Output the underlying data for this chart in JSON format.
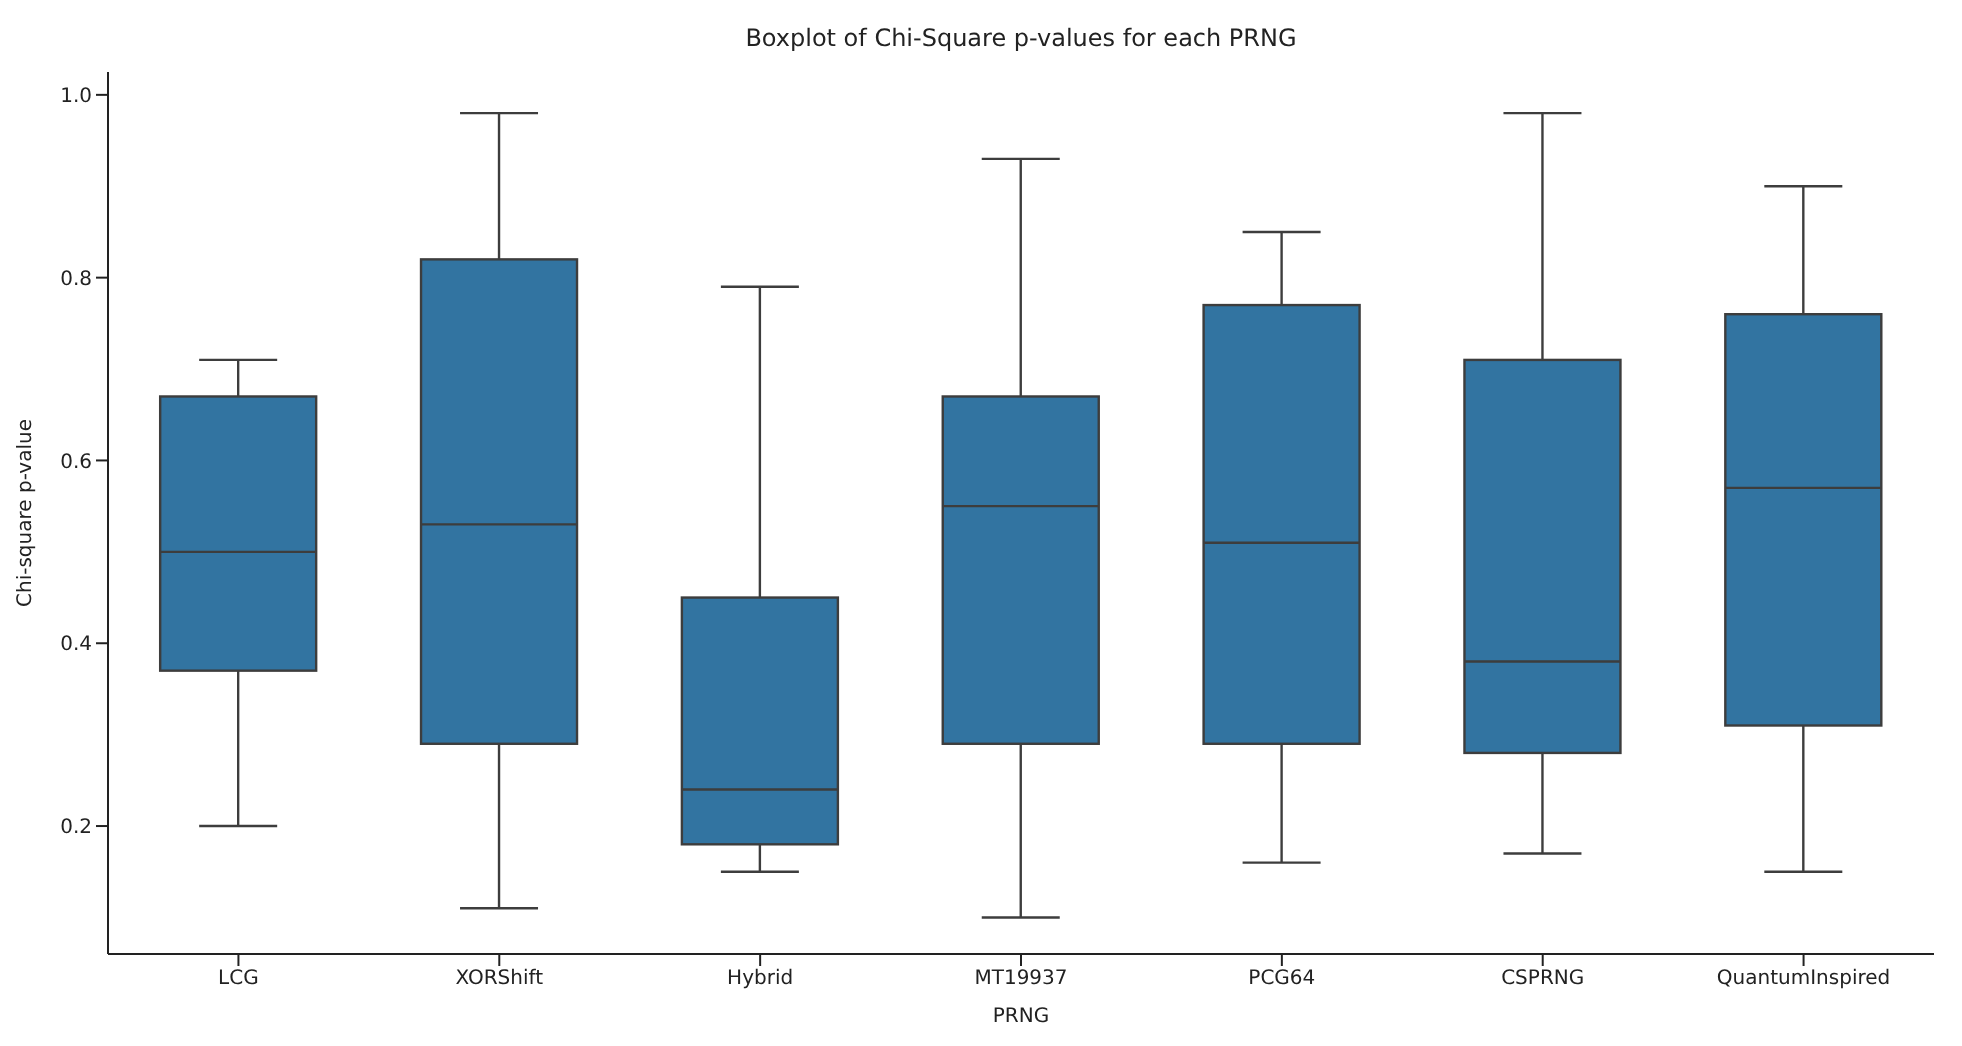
{
  "chart_data": {
    "type": "box",
    "title": "Boxplot of Chi-Square p-values for each PRNG",
    "xlabel": "PRNG",
    "ylabel": "Chi-square p-value",
    "categories": [
      "LCG",
      "XORShift",
      "Hybrid",
      "MT19937",
      "PCG64",
      "CSPRNG",
      "QuantumInspired"
    ],
    "color": "#3274a1",
    "boxes": [
      {
        "low": 0.2,
        "q1": 0.37,
        "median": 0.5,
        "q3": 0.67,
        "high": 0.71
      },
      {
        "low": 0.11,
        "q1": 0.29,
        "median": 0.53,
        "q3": 0.82,
        "high": 0.98
      },
      {
        "low": 0.15,
        "q1": 0.18,
        "median": 0.24,
        "q3": 0.45,
        "high": 0.79
      },
      {
        "low": 0.1,
        "q1": 0.29,
        "median": 0.55,
        "q3": 0.67,
        "high": 0.93
      },
      {
        "low": 0.16,
        "q1": 0.29,
        "median": 0.51,
        "q3": 0.77,
        "high": 0.85
      },
      {
        "low": 0.17,
        "q1": 0.28,
        "median": 0.38,
        "q3": 0.71,
        "high": 0.98
      },
      {
        "low": 0.15,
        "q1": 0.31,
        "median": 0.57,
        "q3": 0.76,
        "high": 0.9
      }
    ],
    "ylim": [
      0.06,
      1.025
    ],
    "yticks": [
      {
        "value": 0.2,
        "label": "0.2"
      },
      {
        "value": 0.4,
        "label": "0.4"
      },
      {
        "value": 0.6,
        "label": "0.6"
      },
      {
        "value": 0.8,
        "label": "0.8"
      },
      {
        "value": 1.0,
        "label": "1.0"
      }
    ]
  }
}
